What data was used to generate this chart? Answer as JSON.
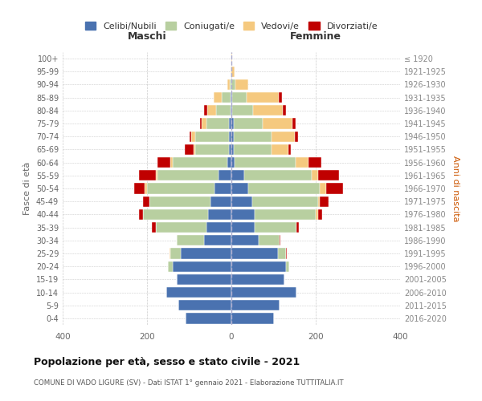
{
  "age_groups": [
    "0-4",
    "5-9",
    "10-14",
    "15-19",
    "20-24",
    "25-29",
    "30-34",
    "35-39",
    "40-44",
    "45-49",
    "50-54",
    "55-59",
    "60-64",
    "65-69",
    "70-74",
    "75-79",
    "80-84",
    "85-89",
    "90-94",
    "95-99",
    "100+"
  ],
  "birth_years": [
    "2016-2020",
    "2011-2015",
    "2006-2010",
    "2001-2005",
    "1996-2000",
    "1991-1995",
    "1986-1990",
    "1981-1985",
    "1976-1980",
    "1971-1975",
    "1966-1970",
    "1961-1965",
    "1956-1960",
    "1951-1955",
    "1946-1950",
    "1941-1945",
    "1936-1940",
    "1931-1935",
    "1926-1930",
    "1921-1925",
    "≤ 1920"
  ],
  "colors": {
    "celibi": "#4a72b0",
    "coniugati": "#b8cfa0",
    "vedovi": "#f5c97f",
    "divorziati": "#c00000"
  },
  "maschi": {
    "celibi": [
      108,
      125,
      155,
      130,
      140,
      120,
      65,
      60,
      55,
      50,
      40,
      30,
      10,
      5,
      5,
      5,
      2,
      2,
      0,
      0,
      0
    ],
    "coniugati": [
      0,
      0,
      0,
      0,
      10,
      25,
      65,
      120,
      155,
      145,
      160,
      145,
      130,
      80,
      80,
      55,
      35,
      20,
      4,
      0,
      0
    ],
    "vedovi": [
      0,
      0,
      0,
      0,
      0,
      2,
      0,
      0,
      0,
      0,
      5,
      5,
      5,
      5,
      10,
      10,
      20,
      20,
      5,
      2,
      0
    ],
    "divorziati": [
      0,
      0,
      0,
      0,
      0,
      0,
      0,
      8,
      10,
      15,
      25,
      40,
      30,
      20,
      5,
      5,
      8,
      0,
      0,
      0,
      0
    ]
  },
  "femmine": {
    "celibi": [
      100,
      115,
      155,
      125,
      130,
      110,
      65,
      55,
      55,
      50,
      40,
      30,
      8,
      5,
      5,
      5,
      2,
      2,
      0,
      0,
      0
    ],
    "coniugati": [
      0,
      0,
      0,
      0,
      8,
      20,
      50,
      100,
      145,
      155,
      170,
      160,
      145,
      90,
      90,
      70,
      50,
      35,
      10,
      0,
      0
    ],
    "vedovi": [
      0,
      0,
      0,
      0,
      0,
      0,
      0,
      0,
      5,
      5,
      15,
      15,
      30,
      40,
      55,
      70,
      70,
      75,
      30,
      8,
      2
    ],
    "divorziati": [
      0,
      0,
      0,
      0,
      0,
      2,
      2,
      5,
      10,
      20,
      40,
      50,
      30,
      5,
      8,
      8,
      8,
      8,
      0,
      0,
      0
    ]
  },
  "title": "Popolazione per età, sesso e stato civile - 2021",
  "subtitle": "COMUNE DI VADO LIGURE (SV) - Dati ISTAT 1° gennaio 2021 - Elaborazione TUTTITALIA.IT",
  "ylabel": "Fasce di età",
  "ylabel_right": "Anni di nascita",
  "xlabel_left": "Maschi",
  "xlabel_right": "Femmine",
  "xlim": 400,
  "legend_labels": [
    "Celibi/Nubili",
    "Coniugati/e",
    "Vedovi/e",
    "Divorziati/e"
  ],
  "background_color": "#ffffff",
  "grid_color": "#cccccc"
}
